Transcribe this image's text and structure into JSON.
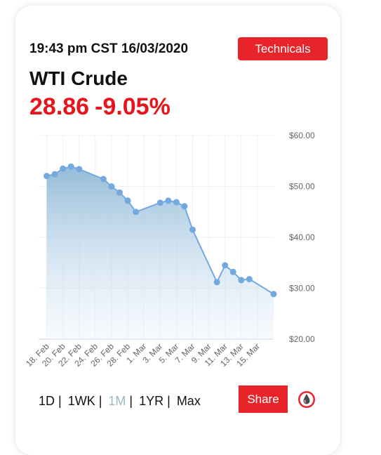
{
  "header": {
    "timestamp": "19:43 pm CST 16/03/2020",
    "technicals_label": "Technicals",
    "commodity": "WTI Crude",
    "price": "28.86",
    "change": "-9.05%"
  },
  "controls": {
    "ranges": [
      "1D",
      "1WK",
      "1M",
      "1YR",
      "Max"
    ],
    "active": "1M",
    "share_label": "Share"
  },
  "colors": {
    "accent": "#e8242a",
    "price": "#e8141b",
    "line": "#74a9df",
    "active_range": "#9bb8c4"
  },
  "icons": {
    "logo": "oil-drop-icon"
  },
  "chart_data": {
    "type": "area",
    "x_tick_labels": [
      "18. Feb",
      "20. Feb",
      "22. Feb",
      "24. Feb",
      "26. Feb",
      "28. Feb",
      "1. Mar",
      "3. Mar",
      "5. Mar",
      "7. Mar",
      "9. Mar",
      "11. Mar",
      "13. Mar",
      "15. Mar"
    ],
    "y_tick_labels": [
      "$60.00",
      "$50.00",
      "$40.00",
      "$30.00",
      "$20.00"
    ],
    "ylim": [
      20,
      60
    ],
    "y_ticks": [
      60,
      50,
      40,
      30,
      20
    ],
    "y_axis_side": "right",
    "grid": true,
    "series": [
      {
        "points": [
          [
            "2020-02-18",
            52.05
          ],
          [
            "2020-02-19",
            52.4
          ],
          [
            "2020-02-20",
            53.5
          ],
          [
            "2020-02-21",
            53.9
          ],
          [
            "2020-02-22",
            53.4
          ],
          [
            "2020-02-25",
            51.45
          ],
          [
            "2020-02-26",
            50.0
          ],
          [
            "2020-02-27",
            48.8
          ],
          [
            "2020-02-28",
            47.2
          ],
          [
            "2020-02-29",
            45.0
          ],
          [
            "2020-03-03",
            46.8
          ],
          [
            "2020-03-04",
            47.2
          ],
          [
            "2020-03-05",
            46.9
          ],
          [
            "2020-03-06",
            46.1
          ],
          [
            "2020-03-07",
            41.5
          ],
          [
            "2020-03-10",
            31.2
          ],
          [
            "2020-03-11",
            34.5
          ],
          [
            "2020-03-12",
            33.2
          ],
          [
            "2020-03-13",
            31.6
          ],
          [
            "2020-03-14",
            31.8
          ],
          [
            "2020-03-17",
            28.86
          ]
        ]
      }
    ]
  }
}
